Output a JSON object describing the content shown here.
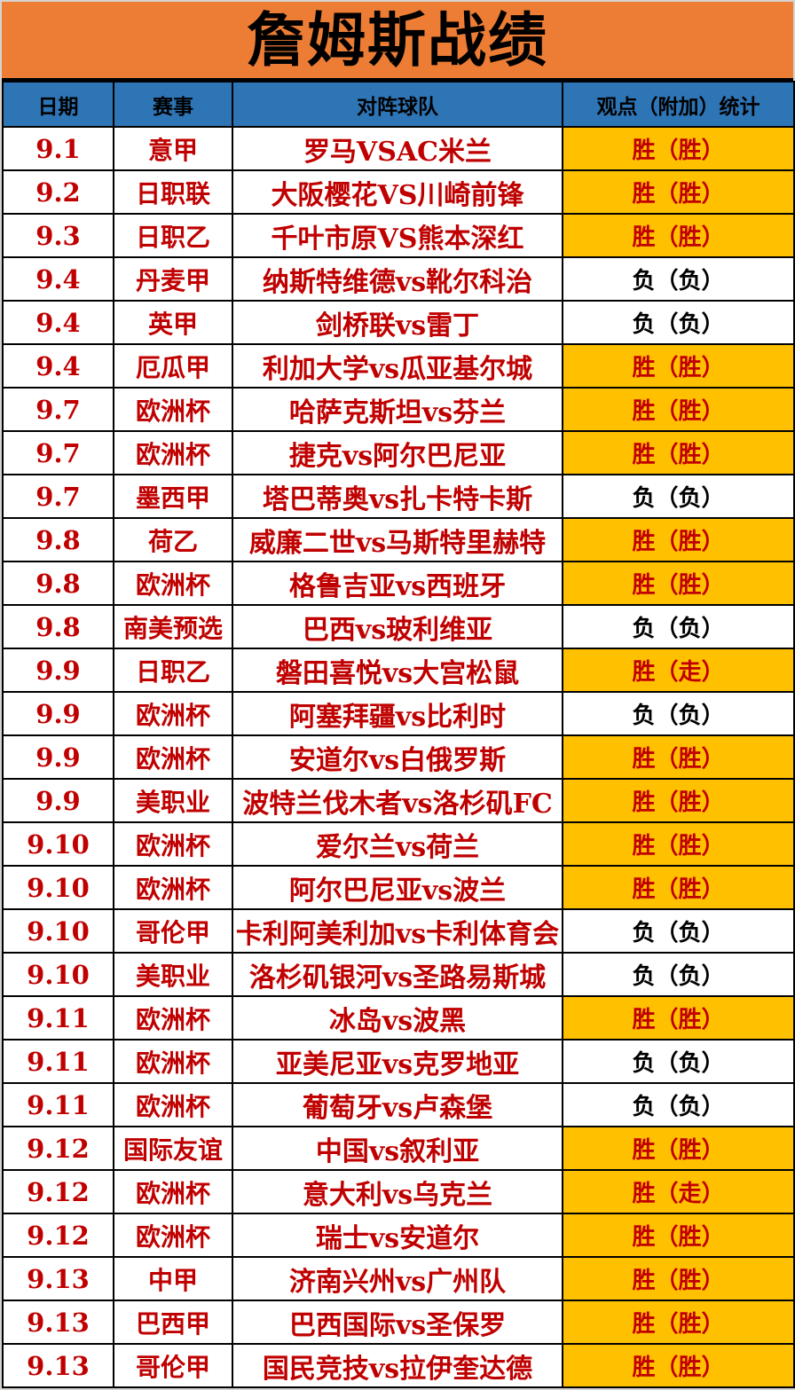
{
  "title": "詹姆斯战绩",
  "colors": {
    "title_bg": "#ED7D35",
    "header_bg": "#2E75B6",
    "win_bg": "#FFC000",
    "red_text": "#C00000",
    "loss_text": "#000000"
  },
  "header": {
    "columns": [
      "日期",
      "赛事",
      "对阵球队",
      "观点（附加）统计"
    ]
  },
  "rows": [
    {
      "date": "9.1",
      "league": "意甲",
      "match": "罗马VSAC米兰",
      "result": "胜（胜）",
      "outcome": "win"
    },
    {
      "date": "9.2",
      "league": "日职联",
      "match": "大阪樱花VS川崎前锋",
      "result": "胜（胜）",
      "outcome": "win"
    },
    {
      "date": "9.3",
      "league": "日职乙",
      "match": "千叶市原VS熊本深红",
      "result": "胜（胜）",
      "outcome": "win"
    },
    {
      "date": "9.4",
      "league": "丹麦甲",
      "match": "纳斯特维德vs靴尔科治",
      "result": "负（负）",
      "outcome": "loss"
    },
    {
      "date": "9.4",
      "league": "英甲",
      "match": "剑桥联vs雷丁",
      "result": "负（负）",
      "outcome": "loss"
    },
    {
      "date": "9.4",
      "league": "厄瓜甲",
      "match": "利加大学vs瓜亚基尔城",
      "result": "胜（胜）",
      "outcome": "win"
    },
    {
      "date": "9.7",
      "league": "欧洲杯",
      "match": "哈萨克斯坦vs芬兰",
      "result": "胜（胜）",
      "outcome": "win"
    },
    {
      "date": "9.7",
      "league": "欧洲杯",
      "match": "捷克vs阿尔巴尼亚",
      "result": "胜（胜）",
      "outcome": "win"
    },
    {
      "date": "9.7",
      "league": "墨西甲",
      "match": "塔巴蒂奥vs扎卡特卡斯",
      "result": "负（负）",
      "outcome": "loss"
    },
    {
      "date": "9.8",
      "league": "荷乙",
      "match": "威廉二世vs马斯特里赫特",
      "result": "胜（胜）",
      "outcome": "win"
    },
    {
      "date": "9.8",
      "league": "欧洲杯",
      "match": "格鲁吉亚vs西班牙",
      "result": "胜（胜）",
      "outcome": "win"
    },
    {
      "date": "9.8",
      "league": "南美预选",
      "match": "巴西vs玻利维亚",
      "result": "负（负）",
      "outcome": "loss"
    },
    {
      "date": "9.9",
      "league": "日职乙",
      "match": "磐田喜悦vs大宫松鼠",
      "result": "胜（走）",
      "outcome": "win"
    },
    {
      "date": "9.9",
      "league": "欧洲杯",
      "match": "阿塞拜疆vs比利时",
      "result": "负（负）",
      "outcome": "loss"
    },
    {
      "date": "9.9",
      "league": "欧洲杯",
      "match": "安道尔vs白俄罗斯",
      "result": "胜（胜）",
      "outcome": "win"
    },
    {
      "date": "9.9",
      "league": "美职业",
      "match": "波特兰伐木者vs洛杉矶FC",
      "result": "胜（胜）",
      "outcome": "win"
    },
    {
      "date": "9.10",
      "league": "欧洲杯",
      "match": "爱尔兰vs荷兰",
      "result": "胜（胜）",
      "outcome": "win"
    },
    {
      "date": "9.10",
      "league": "欧洲杯",
      "match": "阿尔巴尼亚vs波兰",
      "result": "胜（胜）",
      "outcome": "win"
    },
    {
      "date": "9.10",
      "league": "哥伦甲",
      "match": "卡利阿美利加vs卡利体育会",
      "result": "负（负）",
      "outcome": "loss"
    },
    {
      "date": "9.10",
      "league": "美职业",
      "match": "洛杉矶银河vs圣路易斯城",
      "result": "负（负）",
      "outcome": "loss"
    },
    {
      "date": "9.11",
      "league": "欧洲杯",
      "match": "冰岛vs波黑",
      "result": "胜（胜）",
      "outcome": "win"
    },
    {
      "date": "9.11",
      "league": "欧洲杯",
      "match": "亚美尼亚vs克罗地亚",
      "result": "负（负）",
      "outcome": "loss"
    },
    {
      "date": "9.11",
      "league": "欧洲杯",
      "match": "葡萄牙vs卢森堡",
      "result": "负（负）",
      "outcome": "loss"
    },
    {
      "date": "9.12",
      "league": "国际友谊",
      "match": "中国vs叙利亚",
      "result": "胜（胜）",
      "outcome": "win"
    },
    {
      "date": "9.12",
      "league": "欧洲杯",
      "match": "意大利vs乌克兰",
      "result": "胜（走）",
      "outcome": "win"
    },
    {
      "date": "9.12",
      "league": "欧洲杯",
      "match": "瑞士vs安道尔",
      "result": "胜（胜）",
      "outcome": "win"
    },
    {
      "date": "9.13",
      "league": "中甲",
      "match": "济南兴州vs广州队",
      "result": "胜（胜）",
      "outcome": "win"
    },
    {
      "date": "9.13",
      "league": "巴西甲",
      "match": "巴西国际vs圣保罗",
      "result": "胜（胜）",
      "outcome": "win"
    },
    {
      "date": "9.13",
      "league": "哥伦甲",
      "match": "国民竞技vs拉伊奎达德",
      "result": "胜（胜）",
      "outcome": "win"
    }
  ]
}
